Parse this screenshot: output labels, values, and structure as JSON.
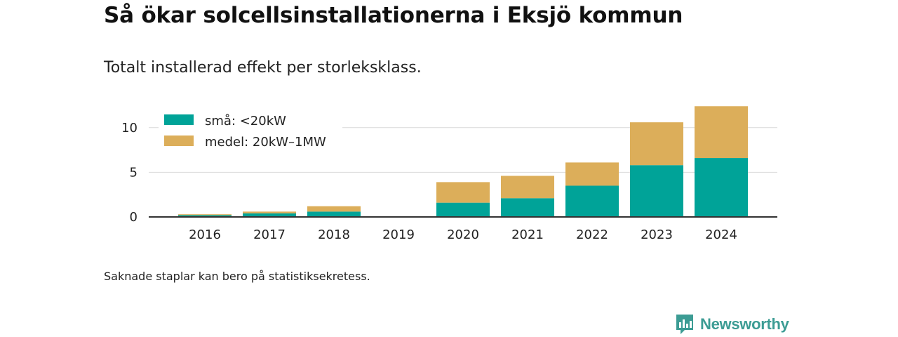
{
  "title": "Så ökar solcellsinstallationerna i Eksjö kommun",
  "subtitle": "Totalt installerad effekt per storleksklass.",
  "footnote": "Saknade staplar kan bero på statistiksekretess.",
  "brand": {
    "name": "Newsworthy",
    "icon": "newsworthy-logo-icon",
    "color": "#3c9c94"
  },
  "chart_data": {
    "type": "bar",
    "stacked": true,
    "categories": [
      "2016",
      "2017",
      "2018",
      "2019",
      "2020",
      "2021",
      "2022",
      "2023",
      "2024"
    ],
    "series": [
      {
        "name": "små: <20kW",
        "color": "#00a398",
        "values": [
          0.2,
          0.4,
          0.6,
          0,
          1.6,
          2.1,
          3.5,
          5.8,
          6.6
        ]
      },
      {
        "name": "medel: 20kW–1MW",
        "color": "#dcae5a",
        "values": [
          0.1,
          0.2,
          0.6,
          0,
          2.3,
          2.5,
          2.6,
          4.8,
          5.8
        ]
      }
    ],
    "yticks": [
      0,
      5,
      10
    ],
    "ylim": [
      0,
      12.5
    ],
    "grid": "horizontal",
    "legend_position": "top-left"
  }
}
